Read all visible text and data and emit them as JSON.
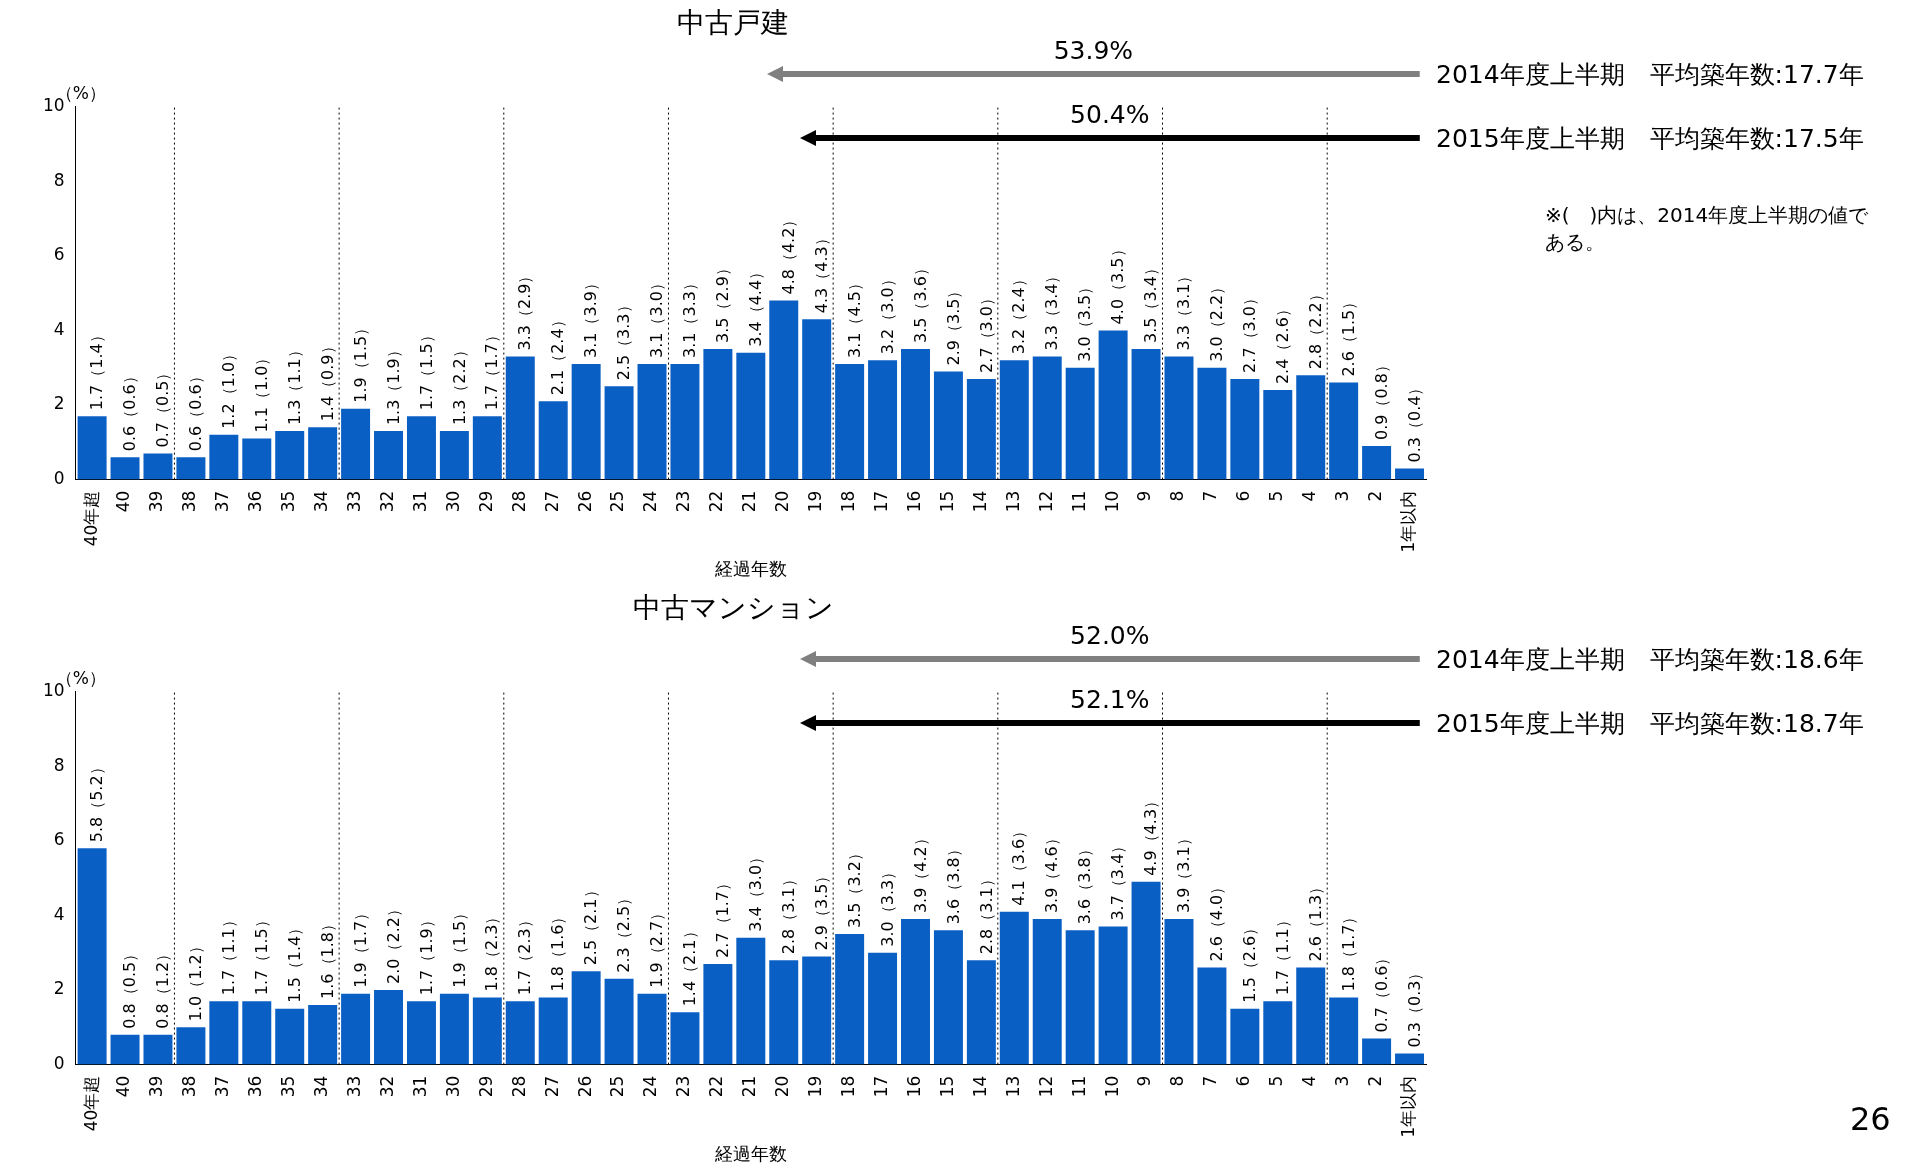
{
  "chart_data": [
    {
      "type": "bar",
      "title": "中古戸建",
      "xlabel": "経過年数",
      "ylabel": "（%）",
      "categories": [
        "40年超",
        "40",
        "39",
        "38",
        "37",
        "36",
        "35",
        "34",
        "33",
        "32",
        "31",
        "30",
        "29",
        "28",
        "27",
        "26",
        "25",
        "24",
        "23",
        "22",
        "21",
        "20",
        "19",
        "18",
        "17",
        "16",
        "15",
        "14",
        "13",
        "12",
        "11",
        "10",
        "9",
        "8",
        "7",
        "6",
        "5",
        "4",
        "3",
        "2",
        "1年以内"
      ],
      "values": [
        1.7,
        0.6,
        0.7,
        0.6,
        1.2,
        1.1,
        1.3,
        1.4,
        1.9,
        1.3,
        1.7,
        1.3,
        1.7,
        3.3,
        2.1,
        3.1,
        2.5,
        3.1,
        3.1,
        3.5,
        3.4,
        4.8,
        4.3,
        3.1,
        3.2,
        3.5,
        2.9,
        2.7,
        3.2,
        3.3,
        3.0,
        4.0,
        3.5,
        3.3,
        3.0,
        2.7,
        2.4,
        2.8,
        2.6,
        0.9,
        0.3
      ],
      "value_labels": [
        "1.7（1.4）",
        "0.6（0.6）",
        "0.7（0.5）",
        "0.6（0.6）",
        "1.2（1.0）",
        "1.1（1.0）",
        "1.3（1.1）",
        "1.4（0.9）",
        "1.9（1.5）",
        "1.3（1.9）",
        "1.7（1.5）",
        "1.3（2.2）",
        "1.7（1.7）",
        "3.3（2.9）",
        "2.1（2.4）",
        "3.1（3.9）",
        "2.5（3.3）",
        "3.1（3.0）",
        "3.1（3.3）",
        "3.5（2.9）",
        "3.4（4.4）",
        "4.8（4.2）",
        "4.3（4.3）",
        "3.1（4.5）",
        "3.2（3.0）",
        "3.5（3.6）",
        "2.9（3.5）",
        "2.7（3.0）",
        "3.2（2.4）",
        "3.3（3.4）",
        "3.0（3.5）",
        "4.0（3.5）",
        "3.5（3.4）",
        "3.3（3.1）",
        "3.0（2.2）",
        "2.7（3.0）",
        "2.4（2.6）",
        "2.8（2.2）",
        "2.6（1.5）",
        "0.9（0.8）",
        "0.3（0.4）"
      ],
      "color": "#0a5fc4",
      "ylim": [
        0,
        10
      ],
      "yticks": [
        0,
        2,
        4,
        6,
        8,
        10
      ],
      "grid": false,
      "annotations": [
        "53.9%",
        "2014年度上半期　平均築年数:17.7年",
        "50.4%",
        "2015年度上半期　平均築年数:17.5年",
        "※(　)内は、2014年度上半期の値である。"
      ]
    },
    {
      "type": "bar",
      "title": "中古マンション",
      "xlabel": "経過年数",
      "ylabel": "（%）",
      "categories": [
        "40年超",
        "40",
        "39",
        "38",
        "37",
        "36",
        "35",
        "34",
        "33",
        "32",
        "31",
        "30",
        "29",
        "28",
        "27",
        "26",
        "25",
        "24",
        "23",
        "22",
        "21",
        "20",
        "19",
        "18",
        "17",
        "16",
        "15",
        "14",
        "13",
        "12",
        "11",
        "10",
        "9",
        "8",
        "7",
        "6",
        "5",
        "4",
        "3",
        "2",
        "1年以内"
      ],
      "values": [
        5.8,
        0.8,
        0.8,
        1.0,
        1.7,
        1.7,
        1.5,
        1.6,
        1.9,
        2.0,
        1.7,
        1.9,
        1.8,
        1.7,
        1.8,
        2.5,
        2.3,
        1.9,
        1.4,
        2.7,
        3.4,
        2.8,
        2.9,
        3.5,
        3.0,
        3.9,
        3.6,
        2.8,
        4.1,
        3.9,
        3.6,
        3.7,
        4.9,
        3.9,
        2.6,
        1.5,
        1.7,
        2.6,
        1.8,
        0.7,
        0.3
      ],
      "value_labels": [
        "5.8（5.2）",
        "0.8（0.5）",
        "0.8（1.2）",
        "1.0（1.2）",
        "1.7（1.1）",
        "1.7（1.5）",
        "1.5（1.4）",
        "1.6（1.8）",
        "1.9（1.7）",
        "2.0（2.2）",
        "1.7（1.9）",
        "1.9（1.5）",
        "1.8（2.3）",
        "1.7（2.3）",
        "1.8（1.6）",
        "2.5（2.1）",
        "2.3（2.5）",
        "1.9（2.7）",
        "1.4（2.1）",
        "2.7（1.7）",
        "3.4（3.0）",
        "2.8（3.1）",
        "2.9（3.5）",
        "3.5（3.2）",
        "3.0（3.3）",
        "3.9（4.2）",
        "3.6（3.8）",
        "2.8（3.1）",
        "4.1（3.6）",
        "3.9（4.6）",
        "3.6（3.8）",
        "3.7（3.4）",
        "4.9（4.3）",
        "3.9（3.1）",
        "2.6（4.0）",
        "1.5（2.6）",
        "1.7（1.1）",
        "2.6（1.3）",
        "1.8（1.7）",
        "0.7（0.6）",
        "0.3（0.3）"
      ],
      "color": "#0a5fc4",
      "ylim": [
        0,
        10
      ],
      "yticks": [
        0,
        2,
        4,
        6,
        8,
        10
      ],
      "grid": false,
      "annotations": [
        "52.0%",
        "2014年度上半期　平均築年数:18.6年",
        "52.1%",
        "2015年度上半期　平均築年数:18.7年",
        "26"
      ]
    }
  ]
}
